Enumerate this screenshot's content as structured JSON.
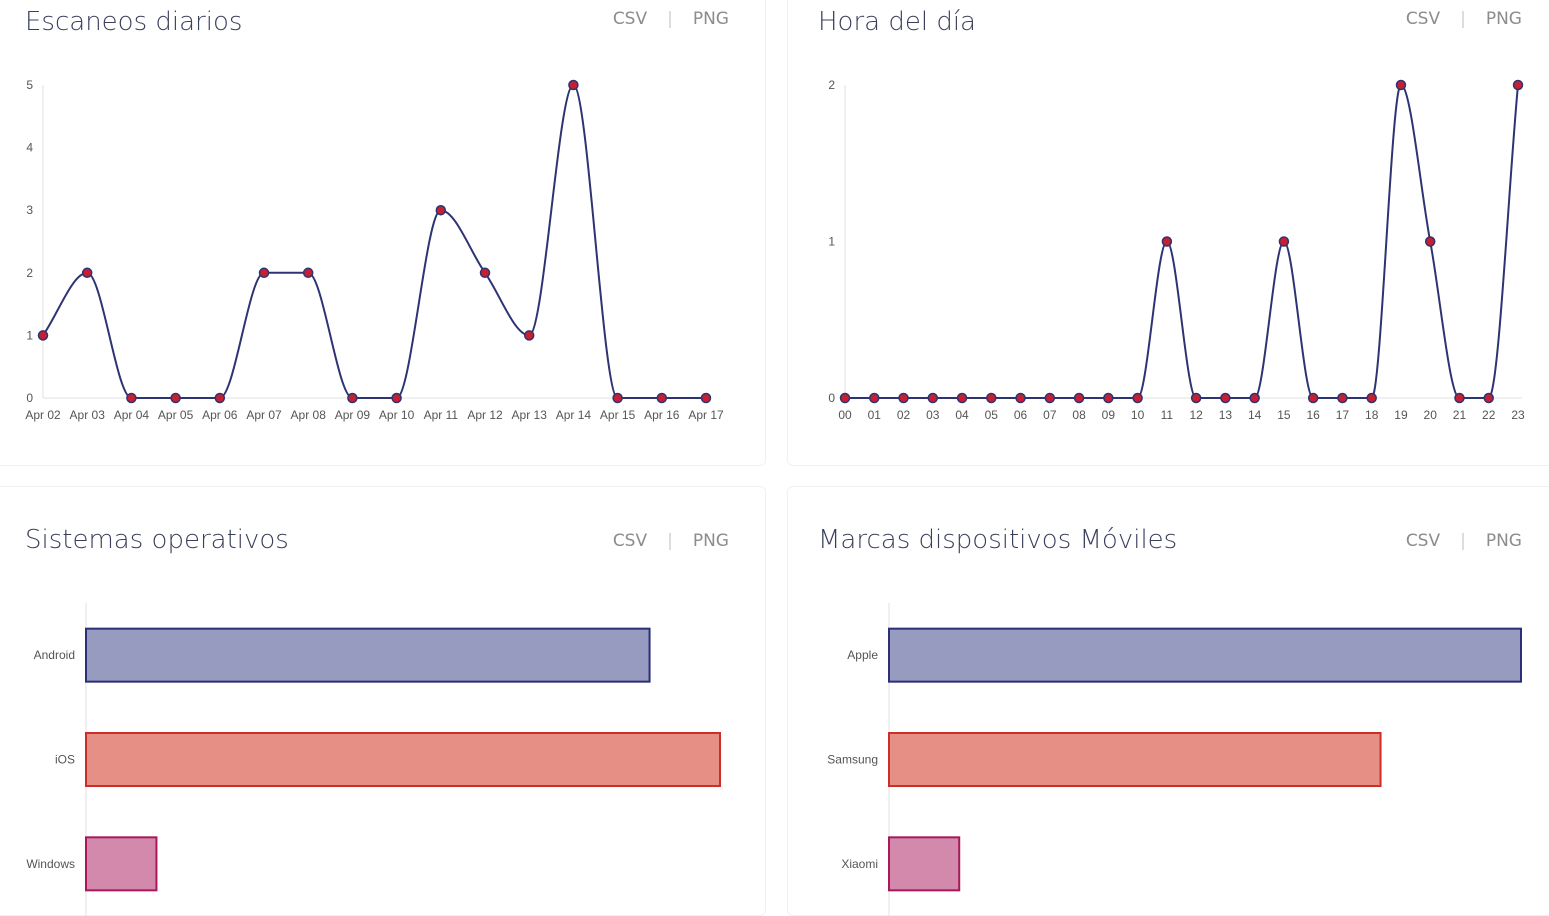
{
  "colors": {
    "line": "#2e3472",
    "point_fill": "#c62030",
    "axis": "#e0e0e0",
    "tick_text": "#555555",
    "bars": [
      {
        "fill": "#979bbf",
        "stroke": "#2a2f77"
      },
      {
        "fill": "#e68f84",
        "stroke": "#cc2e2b"
      },
      {
        "fill": "#d389ab",
        "stroke": "#a8185a"
      }
    ]
  },
  "export": {
    "csv": "CSV",
    "png": "PNG"
  },
  "cards": [
    {
      "title": "Escaneos diarios",
      "chart_data": {
        "type": "line",
        "title": "Escaneos diarios",
        "x": [
          "Apr 02",
          "Apr 03",
          "Apr 04",
          "Apr 05",
          "Apr 06",
          "Apr 07",
          "Apr 08",
          "Apr 09",
          "Apr 10",
          "Apr 11",
          "Apr 12",
          "Apr 13",
          "Apr 14",
          "Apr 15",
          "Apr 16",
          "Apr 17"
        ],
        "values": [
          1,
          2,
          0,
          0,
          0,
          2,
          2,
          0,
          0,
          3,
          2,
          1,
          5,
          0,
          0,
          0
        ],
        "yticks": [
          "0",
          "1",
          "2",
          "3",
          "4",
          "5"
        ],
        "ylim": [
          0,
          5
        ],
        "xlabel": "",
        "ylabel": "",
        "grid": false,
        "smooth": true
      }
    },
    {
      "title": "Hora del día",
      "chart_data": {
        "type": "line",
        "title": "Hora del día",
        "x": [
          "00",
          "01",
          "02",
          "03",
          "04",
          "05",
          "06",
          "07",
          "08",
          "09",
          "10",
          "11",
          "12",
          "13",
          "14",
          "15",
          "16",
          "17",
          "18",
          "19",
          "20",
          "21",
          "22",
          "23"
        ],
        "values": [
          0,
          0,
          0,
          0,
          0,
          0,
          0,
          0,
          0,
          0,
          0,
          1,
          0,
          0,
          0,
          1,
          0,
          0,
          0,
          2,
          1,
          0,
          0,
          2
        ],
        "yticks": [
          "0",
          "1",
          "2"
        ],
        "ylim": [
          0,
          2
        ],
        "xlabel": "",
        "ylabel": "",
        "grid": false,
        "smooth": true
      }
    },
    {
      "title": "Sistemas operativos",
      "chart_data": {
        "type": "bar",
        "orientation": "horizontal",
        "title": "Sistemas operativos",
        "categories": [
          "Android",
          "iOS",
          "Windows"
        ],
        "values": [
          8,
          9,
          1
        ],
        "xlim": [
          0,
          9
        ],
        "xlabel": "",
        "ylabel": "",
        "grid": false
      }
    },
    {
      "title": "Marcas dispositivos Móviles",
      "chart_data": {
        "type": "bar",
        "orientation": "horizontal",
        "title": "Marcas dispositivos Móviles",
        "categories": [
          "Apple",
          "Samsung",
          "Xiaomi"
        ],
        "values": [
          9,
          7,
          1
        ],
        "xlim": [
          0,
          9
        ],
        "xlabel": "",
        "ylabel": "",
        "grid": false
      }
    }
  ]
}
